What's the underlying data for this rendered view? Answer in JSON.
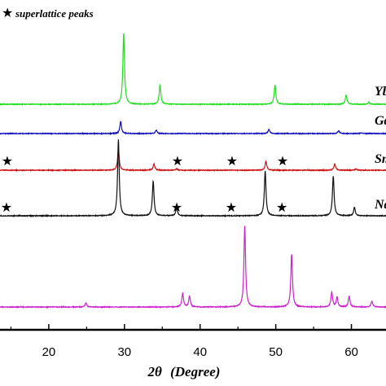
{
  "chart_data": {
    "type": "line",
    "title": "",
    "xlabel": "2θ (Degree)",
    "xlabel_parts": {
      "var": "2θ",
      "unit": "(Degree)"
    },
    "ylabel": "",
    "xlim": [
      10,
      65
    ],
    "xticks": [
      20,
      30,
      40,
      50,
      60
    ],
    "xtick_labels": [
      "20",
      "30",
      "40",
      "50",
      "60"
    ],
    "legend": {
      "text": "superlattice peaks",
      "symbol": "★",
      "position": "top-left"
    },
    "grid": false,
    "series": [
      {
        "name": "Yb",
        "color": "#22dd22",
        "baseline": 0.0,
        "peaks": [
          [
            29.9,
            1.0
          ],
          [
            34.7,
            0.27
          ],
          [
            49.9,
            0.27
          ],
          [
            59.3,
            0.13
          ],
          [
            62.3,
            0.03
          ]
        ],
        "stars": []
      },
      {
        "name": "Gd",
        "color": "#1010bb",
        "baseline": 0.0,
        "peaks": [
          [
            29.5,
            0.5
          ],
          [
            34.2,
            0.14
          ],
          [
            49.1,
            0.18
          ],
          [
            58.3,
            0.12
          ],
          [
            61.3,
            0.03
          ]
        ],
        "stars": []
      },
      {
        "name": "Sm",
        "color": "#cc1111",
        "baseline": 0.0,
        "peaks": [
          [
            29.2,
            0.72
          ],
          [
            33.9,
            0.22
          ],
          [
            36.9,
            0.05
          ],
          [
            48.7,
            0.32
          ],
          [
            57.8,
            0.22
          ],
          [
            60.6,
            0.04
          ]
        ],
        "stars": [
          14.6,
          37.1,
          44.3,
          51.0
        ]
      },
      {
        "name": "Nd",
        "color": "#111111",
        "baseline": 0.0,
        "peaks": [
          [
            29.2,
            0.9
          ],
          [
            33.8,
            0.41
          ],
          [
            36.9,
            0.1
          ],
          [
            48.6,
            0.53
          ],
          [
            57.6,
            0.47
          ],
          [
            60.4,
            0.1
          ]
        ],
        "stars": [
          14.5,
          37.0,
          44.2,
          50.9
        ]
      },
      {
        "name": "",
        "color": "#cc22cc",
        "baseline": 0.0,
        "peaks": [
          [
            24.9,
            0.05
          ],
          [
            37.7,
            0.17
          ],
          [
            38.6,
            0.13
          ],
          [
            45.9,
            1.0
          ],
          [
            52.1,
            0.65
          ],
          [
            57.4,
            0.18
          ],
          [
            58.1,
            0.12
          ],
          [
            59.7,
            0.13
          ],
          [
            62.7,
            0.07
          ]
        ],
        "stars": []
      }
    ]
  }
}
